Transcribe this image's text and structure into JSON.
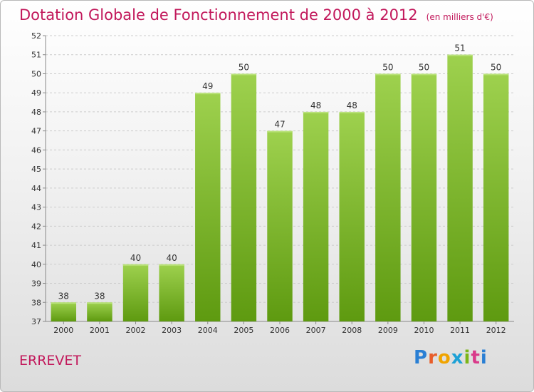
{
  "header": {
    "title": "Dotation Globale de Fonctionnement de 2000 à 2012",
    "subtitle": "(en milliers d'€)"
  },
  "footer": {
    "commune": "ERREVET",
    "logo": "Proxiti"
  },
  "colors": {
    "bar_top": "#9ed14e",
    "bar_bottom": "#5e9a10",
    "title": "#c2185b",
    "grid": "#cccccc"
  },
  "chart_data": {
    "type": "bar",
    "categories": [
      "2000",
      "2001",
      "2002",
      "2003",
      "2004",
      "2005",
      "2006",
      "2007",
      "2008",
      "2009",
      "2010",
      "2011",
      "2012"
    ],
    "values": [
      38,
      38,
      40,
      40,
      49,
      50,
      47,
      48,
      48,
      50,
      50,
      51,
      50
    ],
    "ylim": [
      37,
      52
    ],
    "yticks": [
      37,
      38,
      39,
      40,
      41,
      42,
      43,
      44,
      45,
      46,
      47,
      48,
      49,
      50,
      51,
      52
    ],
    "grid": true,
    "data_labels": true
  }
}
